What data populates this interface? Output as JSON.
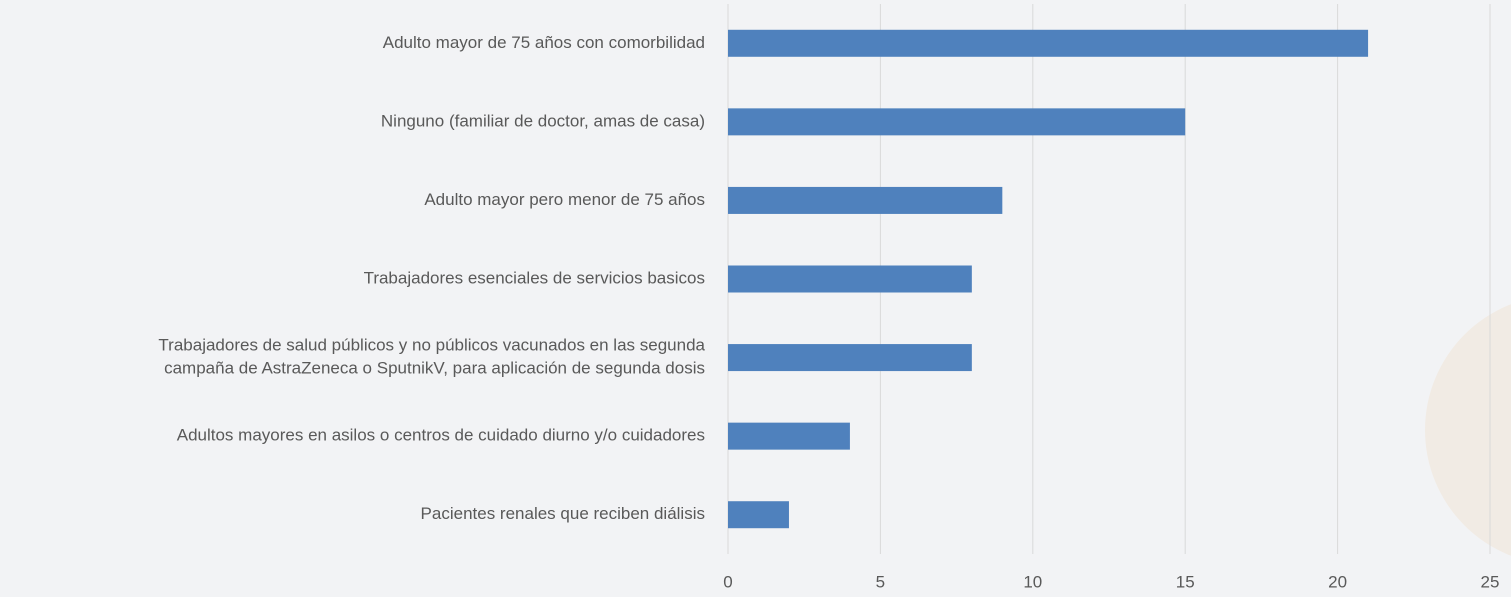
{
  "chart_data": {
    "type": "bar",
    "orientation": "horizontal",
    "categories": [
      "Adulto mayor de 75 años con comorbilidad",
      "Ninguno (familiar de doctor, amas de casa)",
      "Adulto mayor pero menor de 75 años",
      "Trabajadores esenciales de servicios basicos",
      [
        "Trabajadores de salud públicos y no públicos vacunados en las segunda",
        "campaña de AstraZeneca o SputnikV, para aplicación de segunda dosis"
      ],
      "Adultos mayores en asilos o centros de cuidado diurno y/o cuidadores",
      "Pacientes renales que reciben diálisis"
    ],
    "values": [
      21,
      15,
      9,
      8,
      8,
      4,
      2
    ],
    "color": "#4f81bd",
    "xlim": [
      0,
      25
    ],
    "xticks": [
      0,
      5,
      10,
      15,
      20,
      25
    ],
    "grid": true
  }
}
